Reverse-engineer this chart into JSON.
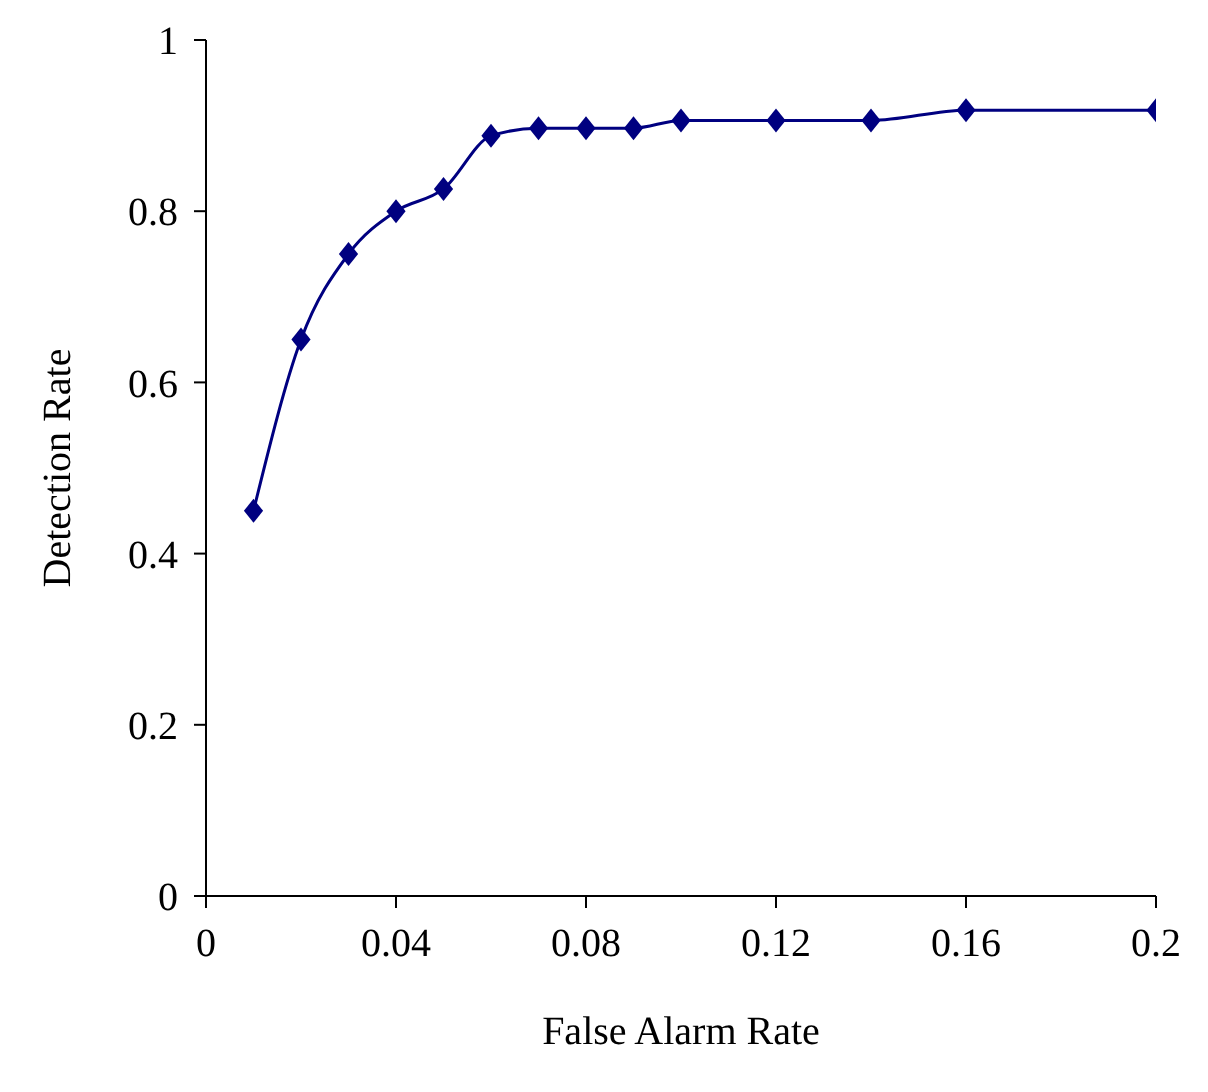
{
  "chart_data": {
    "type": "line",
    "xlabel": "False Alarm Rate",
    "ylabel": "Detection Rate",
    "x": [
      0.01,
      0.02,
      0.03,
      0.04,
      0.05,
      0.06,
      0.07,
      0.08,
      0.09,
      0.1,
      0.12,
      0.14,
      0.16,
      0.2
    ],
    "series": [
      {
        "color": "#000080",
        "values": [
          0.45,
          0.65,
          0.75,
          0.8,
          0.826,
          0.888,
          0.897,
          0.897,
          0.897,
          0.906,
          0.906,
          0.906,
          0.918,
          0.918
        ]
      }
    ],
    "xlim": [
      0,
      0.2
    ],
    "xticks": [
      0,
      0.04,
      0.08,
      0.12,
      0.16,
      0.2
    ],
    "ylim": [
      0,
      1
    ],
    "yticks": [
      0,
      0.2,
      0.4,
      0.6,
      0.8,
      1
    ],
    "marker": "diamond",
    "line_style": "solid"
  }
}
